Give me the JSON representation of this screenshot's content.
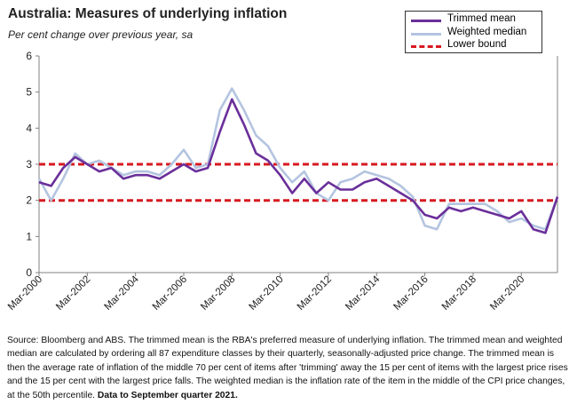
{
  "header": {
    "title": "Australia: Measures of underlying inflation",
    "subtitle": "Per cent change over previous year, sa"
  },
  "note": {
    "text": "Source: Bloomberg and ABS.  The trimmed mean is the RBA's preferred measure of underlying inflation.  The trimmed mean and weighted median are calculated by ordering all 87 expenditure classes by their quarterly, seasonally-adjusted price change. The trimmed mean is then the average rate of inflation of the middle 70 per cent of items after 'trimming' away the 15 per cent of items with the largest price rises and the 15 per cent with the largest price falls.  The weighted median is the inflation rate of the item in the middle of the CPI price changes, at the 50th percentile. ",
    "bold": "Data to September quarter  2021."
  },
  "colors": {
    "trimmed_mean": "#6a2f9a",
    "weighted_median": "#b4c4e0",
    "lower_bound": "#d71920",
    "upper_bound": "#d71920",
    "axis": "#808080"
  },
  "chart_data": {
    "type": "line",
    "title": "Australia: Measures of underlying inflation",
    "subtitle": "Per cent change over previous year, sa",
    "xlabel": "",
    "ylabel": "",
    "ylim": [
      0,
      6
    ],
    "yticks": [
      0,
      1,
      2,
      3,
      4,
      5,
      6
    ],
    "xlim": [
      "Mar-2000",
      "Sep-2021"
    ],
    "xticks": [
      "Mar-2000",
      "Mar-2002",
      "Mar-2004",
      "Mar-2006",
      "Mar-2008",
      "Mar-2010",
      "Mar-2012",
      "Mar-2014",
      "Mar-2016",
      "Mar-2018",
      "Mar-2020"
    ],
    "grid": false,
    "legend_position": "top-right",
    "series": [
      {
        "name": "Trimmed mean",
        "x": [
          "Mar-2000",
          "Sep-2000",
          "Mar-2001",
          "Sep-2001",
          "Mar-2002",
          "Sep-2002",
          "Mar-2003",
          "Sep-2003",
          "Mar-2004",
          "Sep-2004",
          "Mar-2005",
          "Sep-2005",
          "Mar-2006",
          "Sep-2006",
          "Mar-2007",
          "Sep-2007",
          "Mar-2008",
          "Sep-2008",
          "Mar-2009",
          "Sep-2009",
          "Mar-2010",
          "Sep-2010",
          "Mar-2011",
          "Sep-2011",
          "Mar-2012",
          "Sep-2012",
          "Mar-2013",
          "Sep-2013",
          "Mar-2014",
          "Sep-2014",
          "Mar-2015",
          "Sep-2015",
          "Mar-2016",
          "Sep-2016",
          "Mar-2017",
          "Sep-2017",
          "Mar-2018",
          "Sep-2018",
          "Mar-2019",
          "Sep-2019",
          "Mar-2020",
          "Sep-2020",
          "Mar-2021",
          "Sep-2021"
        ],
        "values": [
          2.5,
          2.4,
          2.9,
          3.2,
          3.0,
          2.8,
          2.9,
          2.6,
          2.7,
          2.7,
          2.6,
          2.8,
          3.0,
          2.8,
          2.9,
          3.9,
          4.8,
          4.1,
          3.3,
          3.1,
          2.7,
          2.2,
          2.6,
          2.2,
          2.5,
          2.3,
          2.3,
          2.5,
          2.6,
          2.4,
          2.2,
          2.0,
          1.6,
          1.5,
          1.8,
          1.7,
          1.8,
          1.7,
          1.6,
          1.5,
          1.7,
          1.2,
          1.1,
          2.1
        ]
      },
      {
        "name": "Weighted median",
        "x": [
          "Mar-2000",
          "Sep-2000",
          "Mar-2001",
          "Sep-2001",
          "Mar-2002",
          "Sep-2002",
          "Mar-2003",
          "Sep-2003",
          "Mar-2004",
          "Sep-2004",
          "Mar-2005",
          "Sep-2005",
          "Mar-2006",
          "Sep-2006",
          "Mar-2007",
          "Sep-2007",
          "Mar-2008",
          "Sep-2008",
          "Mar-2009",
          "Sep-2009",
          "Mar-2010",
          "Sep-2010",
          "Mar-2011",
          "Sep-2011",
          "Mar-2012",
          "Sep-2012",
          "Mar-2013",
          "Sep-2013",
          "Mar-2014",
          "Sep-2014",
          "Mar-2015",
          "Sep-2015",
          "Mar-2016",
          "Sep-2016",
          "Mar-2017",
          "Sep-2017",
          "Mar-2018",
          "Sep-2018",
          "Mar-2019",
          "Sep-2019",
          "Mar-2020",
          "Sep-2020",
          "Mar-2021",
          "Sep-2021"
        ],
        "values": [
          2.6,
          2.0,
          2.6,
          3.3,
          3.0,
          3.1,
          2.9,
          2.7,
          2.8,
          2.8,
          2.7,
          3.0,
          3.4,
          2.9,
          3.0,
          4.5,
          5.1,
          4.5,
          3.8,
          3.5,
          2.9,
          2.5,
          2.8,
          2.2,
          2.0,
          2.5,
          2.6,
          2.8,
          2.7,
          2.6,
          2.4,
          2.1,
          1.3,
          1.2,
          1.9,
          1.9,
          1.9,
          1.9,
          1.7,
          1.4,
          1.5,
          1.3,
          1.2,
          2.1
        ]
      },
      {
        "name": "Lower bound",
        "x": [
          "Mar-2000",
          "Sep-2021"
        ],
        "values": [
          2,
          2
        ]
      },
      {
        "x": [
          "Mar-2000",
          "Sep-2021"
        ],
        "values": [
          3,
          3
        ]
      }
    ]
  }
}
